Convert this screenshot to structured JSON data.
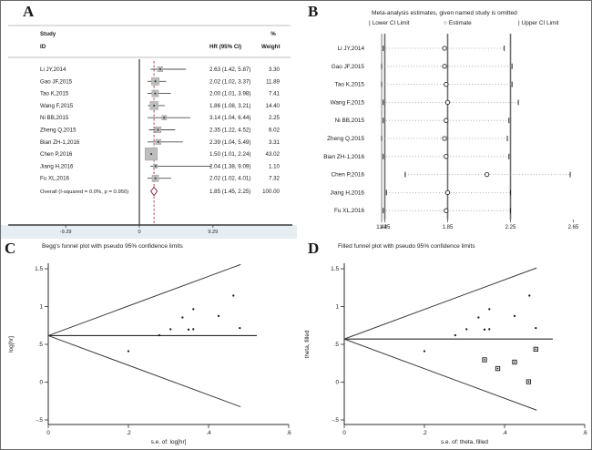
{
  "panels": {
    "a": "A",
    "b": "B",
    "c": "C",
    "d": "D"
  },
  "colors": {
    "box_gray": "#bdbdbd",
    "box_edge": "#9e9e9e",
    "marker_dark": "#333333",
    "ci_line": "#4d4d4d",
    "null_line": "#222222",
    "dashed_red": "#a83232",
    "diamond_stroke": "#7a2f4f",
    "axis": "#3a3a3a",
    "rule_gray": "#aaaaaa",
    "ref_gray": "#6e6e6e",
    "row_dash_gray": "#9a9a9a",
    "stata_strip": "#e7eef3"
  },
  "chart_data": [
    {
      "id": "A",
      "type": "forest",
      "headers": {
        "study": "Study",
        "id": "ID",
        "hr_ci": "HR (95% CI)",
        "percent": "%",
        "weight": "Weight"
      },
      "studies": [
        {
          "label": "Li JY,2014",
          "hr": 2.63,
          "lo": 1.42,
          "hi": 5.87,
          "hr_text": "2.63 (1.42, 5.87)",
          "weight": "3.30"
        },
        {
          "label": "Gao JF,2015",
          "hr": 2.02,
          "lo": 1.02,
          "hi": 3.37,
          "hr_text": "2.02 (1.02, 3.37)",
          "weight": "11.89"
        },
        {
          "label": "Tao K,2015",
          "hr": 2.0,
          "lo": 1.01,
          "hi": 3.98,
          "hr_text": "2.00 (1.01, 3.98)",
          "weight": "7.41"
        },
        {
          "label": "Wang F,2015",
          "hr": 1.86,
          "lo": 1.08,
          "hi": 3.21,
          "hr_text": "1.86 (1.08, 3.21)",
          "weight": "14.40"
        },
        {
          "label": "Ni BB,2015",
          "hr": 3.14,
          "lo": 1.04,
          "hi": 6.44,
          "hr_text": "3.14 (1.04, 6.44)",
          "weight": "2.25"
        },
        {
          "label": "Zheng Q,2015",
          "hr": 2.35,
          "lo": 1.22,
          "hi": 4.52,
          "hr_text": "2.35 (1.22, 4.52)",
          "weight": "6.02"
        },
        {
          "label": "Bian ZH-1,2016",
          "hr": 2.39,
          "lo": 1.04,
          "hi": 5.49,
          "hr_text": "2.39 (1.04, 5.49)",
          "weight": "3.31"
        },
        {
          "label": "Chen P,2016",
          "hr": 1.5,
          "lo": 1.01,
          "hi": 2.24,
          "hr_text": "1.50 (1.01, 2.24)",
          "weight": "43.02"
        },
        {
          "label": "Jiang H,2016",
          "hr": 2.04,
          "lo": 1.38,
          "hi": 9.09,
          "hr_text": "2.04 (1.38, 9.09)",
          "weight": "1.10"
        },
        {
          "label": "Fu XL,2016",
          "hr": 2.02,
          "lo": 1.02,
          "hi": 4.01,
          "hr_text": "2.02 (1.02, 4.01)",
          "weight": "7.32"
        }
      ],
      "overall": {
        "label": "Overall  (I-squared = 0.0%, p = 0.950)",
        "hr": 1.85,
        "lo": 1.45,
        "hi": 2.25,
        "hr_text": "1.85 (1.45, 2.25)",
        "weight": "100.00"
      },
      "x_ticks": [
        {
          "v": -9.29,
          "label": "-9.29"
        },
        {
          "v": 0,
          "label": "0"
        },
        {
          "v": 9.29,
          "label": "9.29"
        }
      ],
      "null_line": 0,
      "pooled_estimate": 1.85
    },
    {
      "id": "B",
      "type": "sensitivity",
      "title": "Meta-analysis estimates, given named study is omitted",
      "legend": {
        "lower": "Lower CI Limit",
        "estimate": "Estimate",
        "upper": "Upper CI Limit"
      },
      "rows": [
        {
          "label": "Li JY,2014",
          "lo": 1.44,
          "est": 1.83,
          "hi": 2.21
        },
        {
          "label": "Gao JF,2015",
          "lo": 1.43,
          "est": 1.83,
          "hi": 2.26
        },
        {
          "label": "Tao K,2015",
          "lo": 1.43,
          "est": 1.84,
          "hi": 2.26
        },
        {
          "label": "Wang F,2015",
          "lo": 1.44,
          "est": 1.85,
          "hi": 2.3
        },
        {
          "label": "Ni BB,2015",
          "lo": 1.44,
          "est": 1.84,
          "hi": 2.24
        },
        {
          "label": "Zheng Q,2015",
          "lo": 1.43,
          "est": 1.83,
          "hi": 2.23
        },
        {
          "label": "Bian ZH-1,2016",
          "lo": 1.44,
          "est": 1.84,
          "hi": 2.24
        },
        {
          "label": "Chen P,2016",
          "lo": 1.58,
          "est": 2.1,
          "hi": 2.63
        },
        {
          "label": "Jiang H,2016",
          "lo": 1.46,
          "est": 1.85,
          "hi": 2.25
        },
        {
          "label": "Fu XL,2016",
          "lo": 1.44,
          "est": 1.84,
          "hi": 2.25
        }
      ],
      "x_ticks": [
        {
          "v": 1.43,
          "label": "1.43"
        },
        {
          "v": 1.45,
          "label": "1.45"
        },
        {
          "v": 1.85,
          "label": "1.85"
        },
        {
          "v": 2.25,
          "label": "2.25"
        },
        {
          "v": 2.65,
          "label": "2.65"
        }
      ],
      "v_lines": [
        1.43,
        1.45,
        1.85,
        2.25
      ]
    },
    {
      "id": "C",
      "type": "funnel",
      "title": "Begg's funnel plot with pseudo 95% confidence limits",
      "ylabel": "log[hr]",
      "xlabel": "s.e. of: log[hr]",
      "center": 0.615,
      "pseudo_limit_slope": 1.96,
      "se_max": 0.48,
      "points": [
        [
          0.2,
          0.41
        ],
        [
          0.277,
          0.62
        ],
        [
          0.305,
          0.7
        ],
        [
          0.335,
          0.855
        ],
        [
          0.35,
          0.695
        ],
        [
          0.362,
          0.7
        ],
        [
          0.362,
          0.965
        ],
        [
          0.425,
          0.875
        ],
        [
          0.462,
          1.145
        ],
        [
          0.478,
          0.715
        ]
      ],
      "y_ticks": [
        {
          "v": -0.5,
          "label": "-.5"
        },
        {
          "v": 0,
          "label": "0"
        },
        {
          "v": 0.5,
          "label": ".5"
        },
        {
          "v": 1,
          "label": "1"
        },
        {
          "v": 1.5,
          "label": "1.5"
        }
      ],
      "x_ticks": [
        {
          "v": 0,
          "label": "0"
        },
        {
          "v": 0.2,
          "label": ".2"
        },
        {
          "v": 0.4,
          "label": ".4"
        },
        {
          "v": 0.6,
          "label": ".6"
        }
      ]
    },
    {
      "id": "D",
      "type": "funnel",
      "title": "Filled funnel plot with pseudo 95% confidence limits",
      "ylabel": "theta, filled",
      "xlabel": "s.e. of: theta, filled",
      "center": 0.57,
      "pseudo_limit_slope": 1.96,
      "se_max": 0.48,
      "points": [
        [
          0.2,
          0.41
        ],
        [
          0.277,
          0.62
        ],
        [
          0.305,
          0.7
        ],
        [
          0.335,
          0.855
        ],
        [
          0.35,
          0.695
        ],
        [
          0.362,
          0.7
        ],
        [
          0.362,
          0.965
        ],
        [
          0.425,
          0.875
        ],
        [
          0.462,
          1.145
        ],
        [
          0.478,
          0.715
        ]
      ],
      "filled_points": [
        [
          0.35,
          0.295
        ],
        [
          0.383,
          0.18
        ],
        [
          0.425,
          0.265
        ],
        [
          0.46,
          0.005
        ],
        [
          0.478,
          0.435
        ]
      ],
      "y_ticks": [
        {
          "v": -0.5,
          "label": "-.5"
        },
        {
          "v": 0,
          "label": "0"
        },
        {
          "v": 0.5,
          "label": ".5"
        },
        {
          "v": 1,
          "label": "1"
        },
        {
          "v": 1.5,
          "label": "1.5"
        }
      ],
      "x_ticks": [
        {
          "v": 0,
          "label": "0"
        },
        {
          "v": 0.2,
          "label": ".2"
        },
        {
          "v": 0.4,
          "label": ".4"
        },
        {
          "v": 0.6,
          "label": ".6"
        }
      ]
    }
  ]
}
